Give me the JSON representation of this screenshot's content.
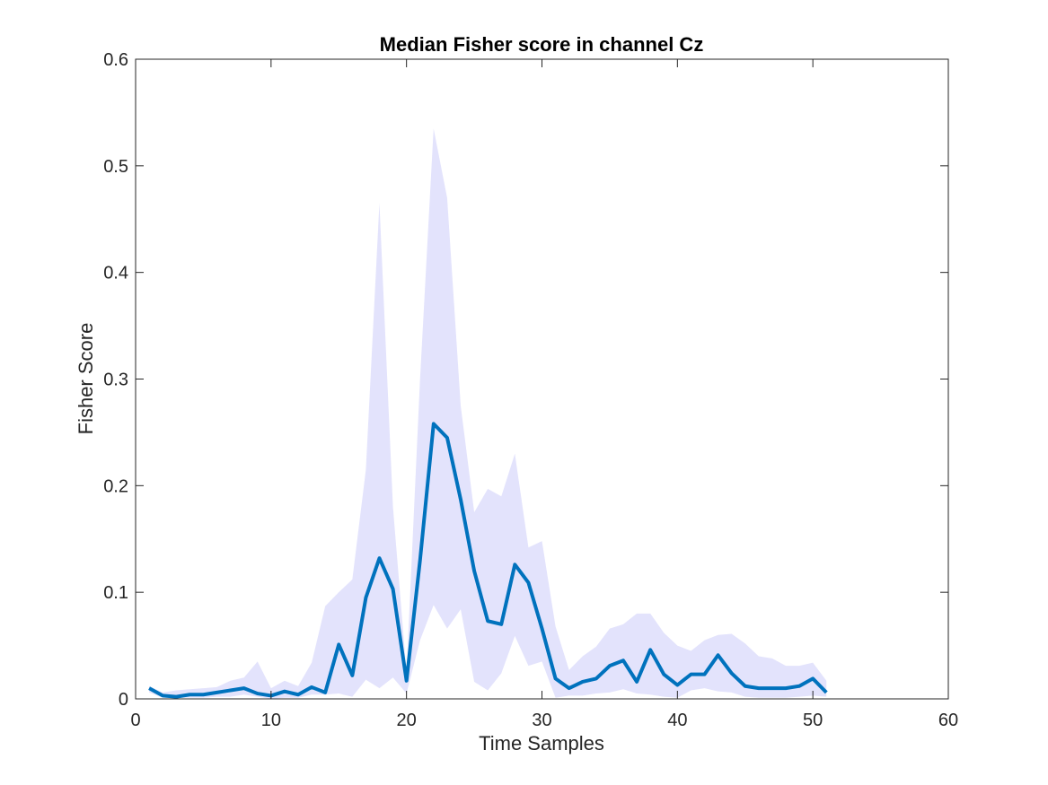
{
  "chart_data": {
    "type": "line",
    "title": "Median Fisher score in channel Cz",
    "xlabel": "Time Samples",
    "ylabel": "Fisher Score",
    "xlim": [
      0,
      60
    ],
    "ylim": [
      0,
      0.6
    ],
    "xticks": [
      0,
      10,
      20,
      30,
      40,
      50,
      60
    ],
    "yticks": [
      0,
      0.1,
      0.2,
      0.3,
      0.4,
      0.5,
      0.6
    ],
    "xtick_labels": [
      "0",
      "10",
      "20",
      "30",
      "40",
      "50",
      "60"
    ],
    "ytick_labels": [
      "0",
      "0.1",
      "0.2",
      "0.3",
      "0.4",
      "0.5",
      "0.6"
    ],
    "grid": false,
    "colors": {
      "line": "#0072BD",
      "band": "#E3E3FC",
      "axes": "#262626"
    },
    "x": [
      1,
      2,
      3,
      4,
      5,
      6,
      7,
      8,
      9,
      10,
      11,
      12,
      13,
      14,
      15,
      16,
      17,
      18,
      19,
      20,
      21,
      22,
      23,
      24,
      25,
      26,
      27,
      28,
      29,
      30,
      31,
      32,
      33,
      34,
      35,
      36,
      37,
      38,
      39,
      40,
      41,
      42,
      43,
      44,
      45,
      46,
      47,
      48,
      49,
      50,
      51
    ],
    "series": [
      {
        "values": [
          0.01,
          0.003,
          0.002,
          0.004,
          0.004,
          0.006,
          0.008,
          0.01,
          0.005,
          0.003,
          0.007,
          0.004,
          0.011,
          0.006,
          0.051,
          0.022,
          0.095,
          0.132,
          0.103,
          0.017,
          0.13,
          0.258,
          0.245,
          0.187,
          0.12,
          0.073,
          0.07,
          0.126,
          0.109,
          0.066,
          0.019,
          0.01,
          0.016,
          0.019,
          0.031,
          0.036,
          0.016,
          0.046,
          0.023,
          0.013,
          0.023,
          0.023,
          0.041,
          0.024,
          0.012,
          0.01,
          0.01,
          0.01,
          0.012,
          0.019,
          0.006
        ],
        "band_upper": [
          0.012,
          0.006,
          0.008,
          0.009,
          0.01,
          0.011,
          0.017,
          0.02,
          0.035,
          0.01,
          0.017,
          0.012,
          0.034,
          0.087,
          0.1,
          0.112,
          0.215,
          0.465,
          0.18,
          0.025,
          0.3,
          0.535,
          0.47,
          0.275,
          0.175,
          0.197,
          0.19,
          0.23,
          0.142,
          0.148,
          0.068,
          0.027,
          0.04,
          0.049,
          0.066,
          0.07,
          0.08,
          0.08,
          0.062,
          0.05,
          0.045,
          0.055,
          0.06,
          0.061,
          0.052,
          0.04,
          0.038,
          0.031,
          0.031,
          0.034,
          0.017
        ],
        "band_lower": [
          0.006,
          0.001,
          0.001,
          0.001,
          0.001,
          0.002,
          0.002,
          0.004,
          0.002,
          0.0,
          0.001,
          0.001,
          0.004,
          0.004,
          0.005,
          0.002,
          0.018,
          0.01,
          0.02,
          0.005,
          0.055,
          0.088,
          0.066,
          0.084,
          0.016,
          0.008,
          0.024,
          0.059,
          0.031,
          0.035,
          0.001,
          0.003,
          0.003,
          0.005,
          0.006,
          0.009,
          0.005,
          0.004,
          0.002,
          0.001,
          0.008,
          0.01,
          0.007,
          0.006,
          0.002,
          0.001,
          0.001,
          0.001,
          0.002,
          0.003,
          0.002
        ]
      }
    ]
  }
}
